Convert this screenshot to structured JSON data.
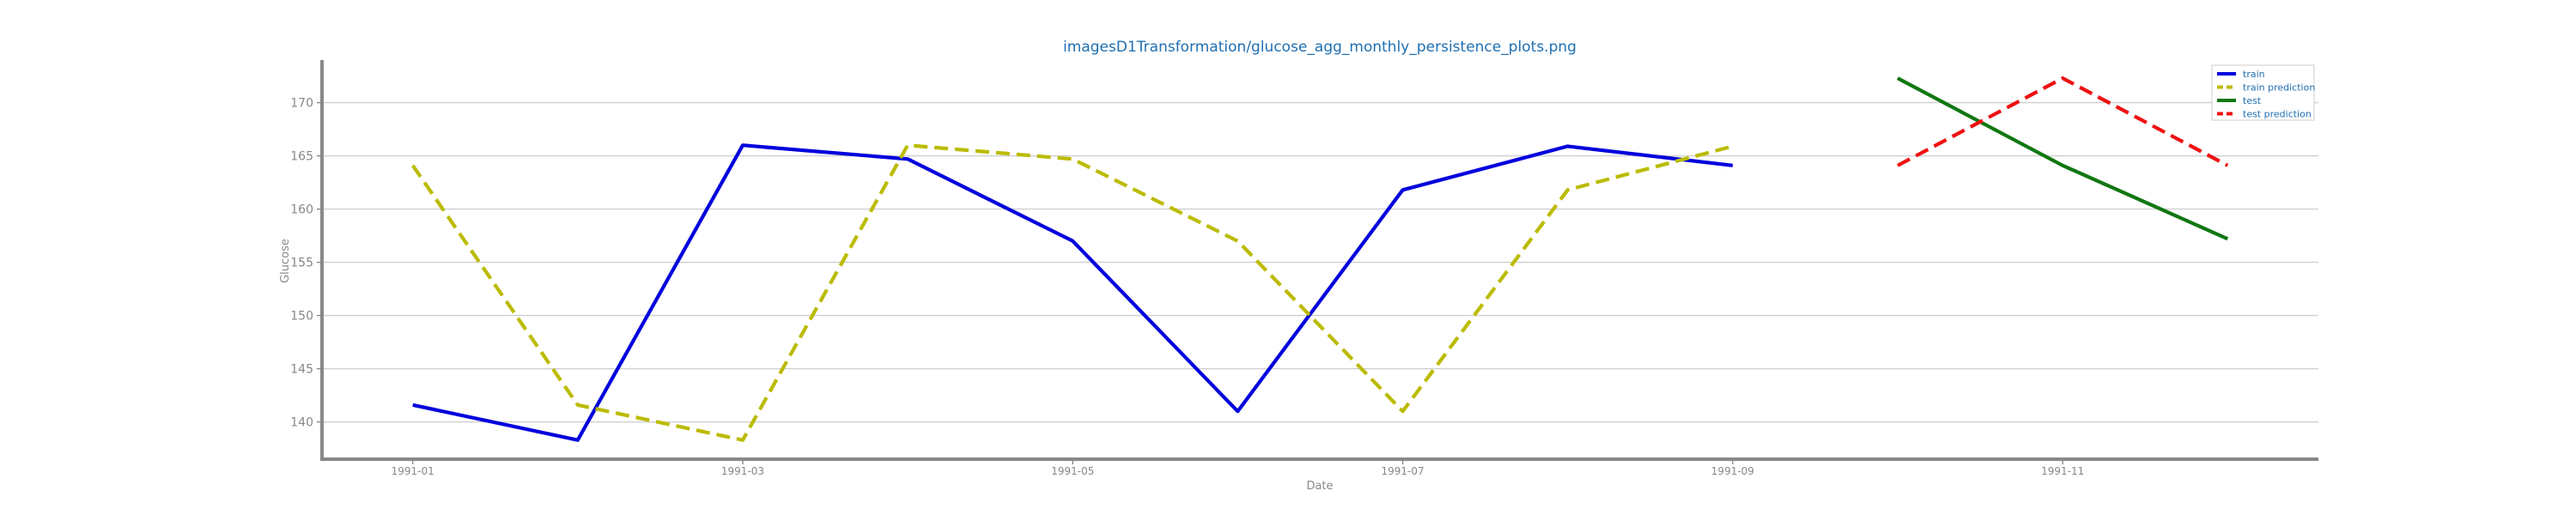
{
  "chart_data": {
    "type": "line",
    "title": "imagesD1Transformation/glucose_agg_monthly_persistence_plots.png",
    "xlabel": "Date",
    "ylabel": "Glucose",
    "x_tick_labels": [
      "1991-01",
      "1991-03",
      "1991-05",
      "1991-07",
      "1991-09",
      "1991-11"
    ],
    "x_tick_months": [
      1,
      3,
      5,
      7,
      9,
      11
    ],
    "y_ticks": [
      140,
      145,
      150,
      155,
      160,
      165,
      170
    ],
    "xlim": [
      0.45,
      12.55
    ],
    "ylim": [
      136.5,
      174.0
    ],
    "grid": true,
    "legend_position": "top-right",
    "series": [
      {
        "name": "train",
        "color": "#0000dd",
        "dashed": false,
        "x": [
          1,
          2,
          3,
          4,
          5,
          6,
          7,
          8,
          9
        ],
        "y": [
          141.6,
          138.3,
          166.0,
          164.7,
          157.0,
          141.0,
          161.8,
          165.9,
          164.1
        ]
      },
      {
        "name": "train prediction",
        "color": "#bbbb00",
        "dashed": true,
        "x": [
          1,
          2,
          3,
          4,
          5,
          6,
          7,
          8,
          9
        ],
        "y": [
          164.1,
          141.6,
          138.3,
          166.0,
          164.7,
          157.0,
          141.0,
          161.8,
          165.9
        ]
      },
      {
        "name": "test",
        "color": "#117711",
        "dashed": false,
        "x": [
          10,
          11,
          12
        ],
        "y": [
          172.3,
          164.1,
          157.2
        ]
      },
      {
        "name": "test prediction",
        "color": "#ee1111",
        "dashed": true,
        "x": [
          10,
          11,
          12
        ],
        "y": [
          164.1,
          172.3,
          164.1
        ]
      }
    ]
  }
}
